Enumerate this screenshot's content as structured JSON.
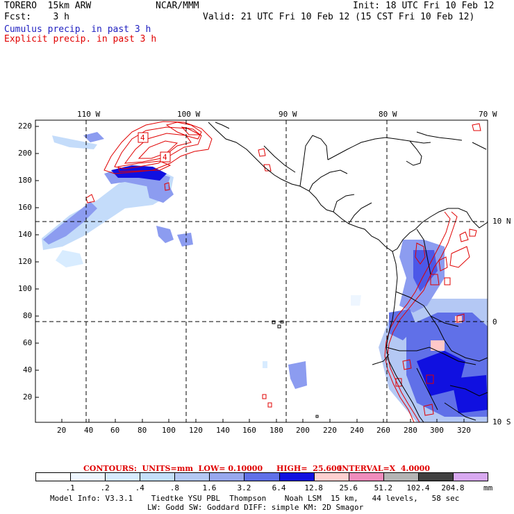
{
  "header": {
    "left_title": "TORERO  15km ARW",
    "center_title": "NCAR/MMM",
    "init": "Init: 18 UTC Fri 10 Feb 12",
    "fcst": "Fcst:    3 h",
    "valid": "Valid: 21 UTC Fri 10 Feb 12 (15 CST Fri 10 Feb 12)",
    "line3": "Cumulus precip. in past 3 h",
    "line4": "Explicit precip. in past 3 h"
  },
  "map": {
    "top_lon_labels": [
      "110 W",
      "100 W",
      "90 W",
      "80 W",
      "70 W"
    ],
    "right_lat_labels": [
      "10 N",
      "0",
      "10 S"
    ],
    "left_ticks": [
      "220",
      "200",
      "180",
      "160",
      "140",
      "120",
      "100",
      "80",
      "60",
      "40",
      "20"
    ],
    "bottom_ticks": [
      "20",
      "40",
      "60",
      "80",
      "100",
      "120",
      "140",
      "160",
      "180",
      "200",
      "220",
      "240",
      "260",
      "280",
      "300",
      "320"
    ],
    "contour_labels": [
      "4",
      "4"
    ],
    "colors": {
      "cumulus_light": "#d0e6ff",
      "cumulus_mid": "#8c9cf0",
      "cumulus_dark": "#4c58e8",
      "cumulus_max": "#1010e0",
      "explicit_contour": "#e00000",
      "pink": "#ffc8c8"
    }
  },
  "contours": {
    "label": "CONTOURS:  UNITS=mm  LOW= 0.10000",
    "high": "HIGH=  25.600",
    "interval": "INTERVAL=X  4.0000"
  },
  "colorbar": {
    "labels": [
      ".1",
      ".2",
      ".4",
      ".8",
      "1.6",
      "3.2",
      "6.4",
      "12.8",
      "25.6",
      "51.2",
      "102.4",
      "204.8"
    ],
    "unit": "mm",
    "colors": [
      "#ffffff",
      "#eef6ff",
      "#d8ecff",
      "#c4e0fa",
      "#b4c8f4",
      "#98a8ee",
      "#6070e8",
      "#1010e0",
      "#ffd0d0",
      "#f08cbc",
      "#b4b4b4",
      "#404040",
      "#d8a8f0"
    ]
  },
  "footer": {
    "line1": "Model Info: V3.3.1    Tiedtke YSU PBL  Thompson    Noah LSM  15 km,   44 levels,   58 sec",
    "line2": "LW: Godd SW: Goddard DIFF: simple KM: 2D Smagor"
  }
}
